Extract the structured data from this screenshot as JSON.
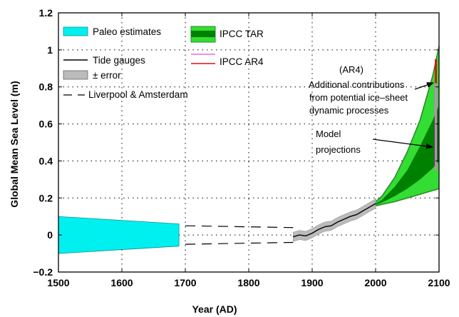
{
  "chart_data": {
    "type": "line",
    "title": "",
    "xlabel": "Year (AD)",
    "ylabel": "Global Mean Sea Level (m)",
    "xlim": [
      1500,
      2100
    ],
    "ylim": [
      -0.2,
      1.2
    ],
    "xticks": [
      1500,
      1600,
      1700,
      1800,
      1900,
      2000,
      2100
    ],
    "yticks": [
      -0.2,
      0,
      0.2,
      0.4,
      0.6,
      0.8,
      1,
      1.2
    ],
    "ytick_labels": [
      "−0.2",
      "0",
      "0.2",
      "0.4",
      "0.6",
      "0.8",
      "1",
      "1.2"
    ],
    "grid": true,
    "legend_position": "top-left",
    "legend": {
      "paleo": "Paleo estimates",
      "tide": "Tide gauges",
      "error": "± error",
      "liverpool": "Liverpool & Amsterdam",
      "tar": "IPCC TAR",
      "ar4": "IPCC AR4"
    },
    "colors": {
      "paleo": "#00f0f0",
      "tar_light": "#33dd33",
      "tar_dark": "#008000",
      "tar_edge": "#2a8a2a",
      "ar4_red": "#e01010",
      "ar4_pink": "#e070e0",
      "error_gray": "#bbbbbb",
      "tide": "#000000"
    },
    "series": [
      {
        "name": "Paleo estimates",
        "kind": "band",
        "x": [
          1500,
          1690
        ],
        "upper": [
          0.1,
          0.06
        ],
        "lower": [
          -0.1,
          -0.06
        ]
      },
      {
        "name": "Liverpool & Amsterdam",
        "kind": "dashed-pair",
        "x": [
          1700,
          1870
        ],
        "upper": [
          0.05,
          0.04
        ],
        "lower": [
          -0.05,
          -0.04
        ]
      },
      {
        "name": "Tide gauges",
        "kind": "line",
        "x": [
          1870,
          1880,
          1890,
          1900,
          1910,
          1920,
          1930,
          1940,
          1950,
          1960,
          1970,
          1980,
          1990,
          2000
        ],
        "y": [
          -0.01,
          0.0,
          -0.005,
          0.01,
          0.03,
          0.045,
          0.05,
          0.07,
          0.085,
          0.1,
          0.11,
          0.13,
          0.15,
          0.17
        ],
        "error": 0.025
      },
      {
        "name": "IPCC TAR",
        "kind": "projection",
        "x": [
          1990,
          2010,
          2030,
          2050,
          2070,
          2090,
          2100
        ],
        "outer_upper": [
          0.15,
          0.21,
          0.31,
          0.45,
          0.62,
          0.86,
          1.02
        ],
        "inner_upper": [
          0.15,
          0.19,
          0.26,
          0.35,
          0.48,
          0.62,
          0.7
        ],
        "inner_lower": [
          0.15,
          0.175,
          0.21,
          0.25,
          0.3,
          0.36,
          0.4
        ],
        "outer_lower": [
          0.15,
          0.165,
          0.18,
          0.2,
          0.22,
          0.24,
          0.25
        ]
      },
      {
        "name": "IPCC AR4",
        "kind": "bar",
        "x": 2095,
        "model_range": [
          0.35,
          0.82
        ],
        "ice_sheet_top": 0.95
      }
    ],
    "annotations": {
      "ar4_label": "(AR4)",
      "ice_line1": "Additional contributions",
      "ice_line2": "from potential ice–sheet",
      "ice_line3": "dynamic processes",
      "model_line1": "Model",
      "model_line2": "projections"
    }
  }
}
